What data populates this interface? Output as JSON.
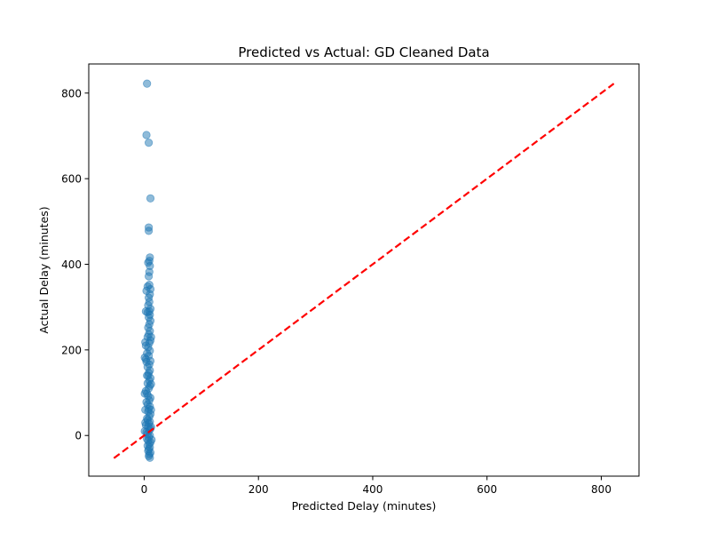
{
  "chart_data": {
    "type": "scatter",
    "title": "Predicted vs Actual: GD Cleaned Data",
    "xlabel": "Predicted Delay (minutes)",
    "ylabel": "Actual Delay (minutes)",
    "xlim": [
      -97,
      866
    ],
    "ylim": [
      -95,
      868
    ],
    "xticks": [
      0,
      200,
      400,
      600,
      800
    ],
    "yticks": [
      0,
      200,
      400,
      600,
      800
    ],
    "grid": false,
    "legend": "none",
    "colors": {
      "points": "#1f77b4",
      "reference_line": "#ff0000"
    },
    "reference_line": {
      "style": "dashed",
      "from": [
        -53,
        -53
      ],
      "to": [
        822,
        822
      ]
    },
    "points": [
      [
        5,
        822
      ],
      [
        4,
        702
      ],
      [
        8,
        684
      ],
      [
        11,
        554
      ],
      [
        8,
        486
      ],
      [
        8,
        478
      ],
      [
        10,
        416
      ],
      [
        9,
        408
      ],
      [
        7,
        404
      ],
      [
        10,
        396
      ],
      [
        9,
        382
      ],
      [
        8,
        372
      ],
      [
        9,
        352
      ],
      [
        6,
        348
      ],
      [
        11,
        342
      ],
      [
        4,
        338
      ],
      [
        10,
        330
      ],
      [
        8,
        322
      ],
      [
        9,
        312
      ],
      [
        7,
        304
      ],
      [
        11,
        296
      ],
      [
        9,
        290
      ],
      [
        3,
        290
      ],
      [
        6,
        288
      ],
      [
        10,
        282
      ],
      [
        8,
        276
      ],
      [
        11,
        268
      ],
      [
        9,
        260
      ],
      [
        7,
        252
      ],
      [
        10,
        244
      ],
      [
        8,
        236
      ],
      [
        6,
        230
      ],
      [
        11,
        222
      ],
      [
        9,
        216
      ],
      [
        2,
        218
      ],
      [
        3,
        210
      ],
      [
        7,
        206
      ],
      [
        10,
        198
      ],
      [
        5,
        192
      ],
      [
        8,
        186
      ],
      [
        1,
        182
      ],
      [
        3,
        178
      ],
      [
        4,
        172
      ],
      [
        11,
        174
      ],
      [
        9,
        166
      ],
      [
        6,
        160
      ],
      [
        10,
        152
      ],
      [
        8,
        146
      ],
      [
        7,
        140
      ],
      [
        11,
        134
      ],
      [
        9,
        128
      ],
      [
        6,
        122
      ],
      [
        10,
        116
      ],
      [
        8,
        110
      ],
      [
        3,
        104
      ],
      [
        1,
        98
      ],
      [
        5,
        98
      ],
      [
        7,
        92
      ],
      [
        11,
        88
      ],
      [
        9,
        82
      ],
      [
        4,
        78
      ],
      [
        6,
        72
      ],
      [
        10,
        68
      ],
      [
        8,
        62
      ],
      [
        2,
        60
      ],
      [
        7,
        56
      ],
      [
        11,
        50
      ],
      [
        9,
        44
      ],
      [
        5,
        40
      ],
      [
        6,
        36
      ],
      [
        10,
        32
      ],
      [
        8,
        28
      ],
      [
        3,
        24
      ],
      [
        7,
        20
      ],
      [
        11,
        16
      ],
      [
        9,
        12
      ],
      [
        4,
        8
      ],
      [
        6,
        4
      ],
      [
        10,
        0
      ],
      [
        8,
        -4
      ],
      [
        5,
        -8
      ],
      [
        7,
        -12
      ],
      [
        11,
        -16
      ],
      [
        9,
        -20
      ],
      [
        6,
        -24
      ],
      [
        10,
        -28
      ],
      [
        8,
        -32
      ],
      [
        7,
        -36
      ],
      [
        11,
        -40
      ],
      [
        9,
        -44
      ],
      [
        8,
        -48
      ],
      [
        10,
        -52
      ],
      [
        12,
        120
      ],
      [
        12,
        60
      ],
      [
        12,
        20
      ],
      [
        13,
        -10
      ],
      [
        2,
        30
      ],
      [
        1,
        10
      ],
      [
        5,
        140
      ],
      [
        12,
        230
      ]
    ]
  }
}
